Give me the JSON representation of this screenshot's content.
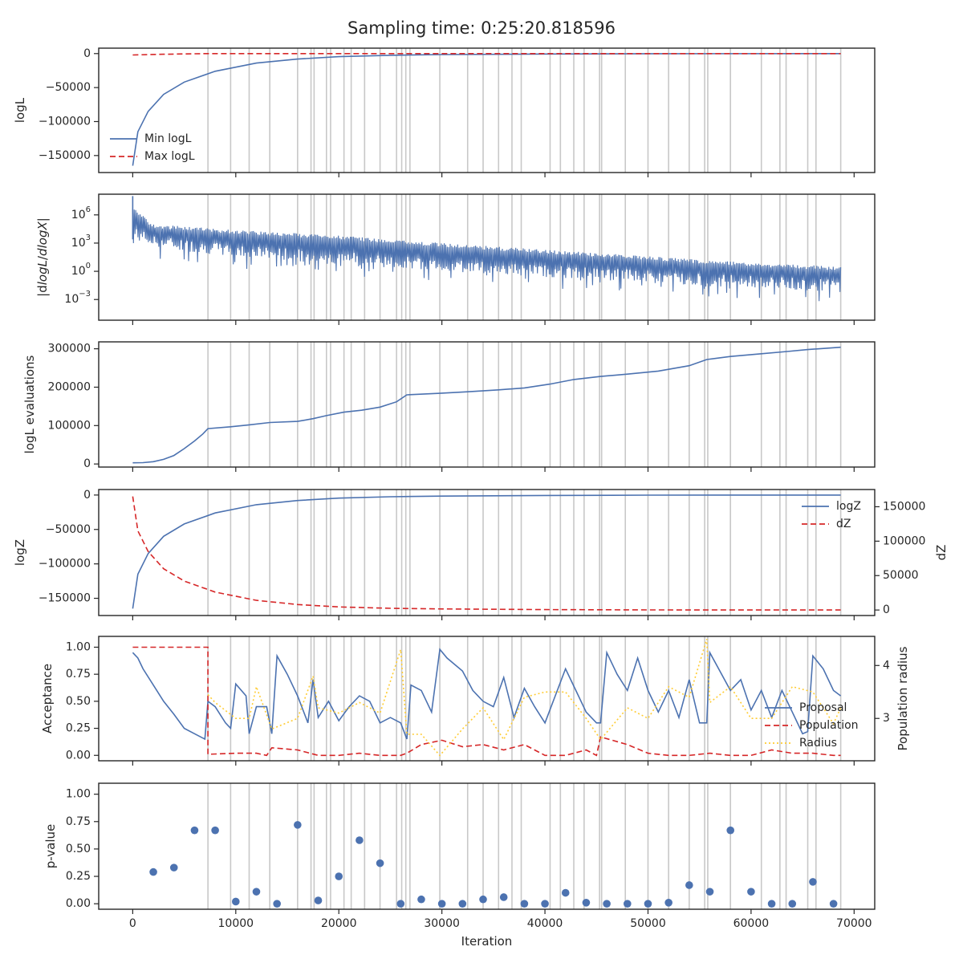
{
  "title": "Sampling time: 0:25:20.818596",
  "colors": {
    "blue": "#4c72b0",
    "red": "#d62728",
    "yellow": "#ffcc33",
    "grid": "#c8c8c8",
    "axis": "#262626"
  },
  "chart_data": [
    {
      "type": "line",
      "ylabel": "logL",
      "ylim": [
        -175000,
        8000
      ],
      "yticks": [
        0,
        -50000,
        -100000,
        -150000
      ],
      "ytick_labels": [
        "0",
        "−50000",
        "−100000",
        "−150000"
      ],
      "legend": [
        "Min logL",
        "Max logL"
      ],
      "legend_loc": "lower-left",
      "series": [
        {
          "name": "Min logL",
          "color": "blue",
          "style": "solid",
          "x": [
            0,
            500,
            1500,
            3000,
            5000,
            8000,
            12000,
            16000,
            20000,
            25000,
            30000,
            40000,
            50000,
            68700
          ],
          "y": [
            -165000,
            -115000,
            -85000,
            -60000,
            -42000,
            -26000,
            -14000,
            -8000,
            -4500,
            -2500,
            -1500,
            -600,
            -200,
            0
          ]
        },
        {
          "name": "Max logL",
          "color": "red",
          "style": "dashed",
          "x": [
            0,
            3000,
            7000,
            15000,
            68700
          ],
          "y": [
            -2000,
            -1000,
            0,
            0,
            0
          ]
        }
      ]
    },
    {
      "type": "line",
      "ylabel": "|dlogL/dlogX|",
      "yscale": "log",
      "ylim_log10": [
        -5.2,
        8.2
      ],
      "yticks_log10": [
        6,
        3,
        0,
        -3
      ],
      "ytick_labels": [
        "10^6",
        "10^3",
        "10^0",
        "10^-3"
      ],
      "series": [
        {
          "name": "",
          "color": "blue",
          "style": "noisy-band",
          "x": [
            0,
            2000,
            10000,
            20000,
            30000,
            40000,
            50000,
            60000,
            68700
          ],
          "upper_log10": [
            6.8,
            5.0,
            4.4,
            3.8,
            3.0,
            2.3,
            1.6,
            0.9,
            0.5
          ],
          "lower_log10": [
            3.5,
            2.5,
            1.5,
            0.8,
            0.0,
            -0.6,
            -1.2,
            -1.8,
            -2.2
          ]
        }
      ]
    },
    {
      "type": "line",
      "ylabel": "logL evaluations",
      "ylim": [
        -8000,
        318000
      ],
      "yticks": [
        0,
        100000,
        200000,
        300000
      ],
      "ytick_labels": [
        "0",
        "100000",
        "200000",
        "300000"
      ],
      "series": [
        {
          "name": "",
          "color": "blue",
          "style": "solid",
          "x": [
            0,
            1000,
            2000,
            3000,
            4000,
            5000,
            6000,
            6800,
            7300,
            9500,
            11300,
            13300,
            16000,
            17500,
            18800,
            20500,
            22200,
            24000,
            25600,
            26600,
            29800,
            32500,
            35500,
            38000,
            40500,
            42800,
            45400,
            48000,
            51000,
            54000,
            55700,
            58000,
            61000,
            63500,
            65500,
            68700
          ],
          "y": [
            3000,
            3500,
            6000,
            12000,
            22000,
            40000,
            60000,
            78000,
            92000,
            97000,
            102000,
            108000,
            111000,
            118000,
            126000,
            135000,
            140000,
            148000,
            162000,
            180000,
            184000,
            188000,
            193000,
            198000,
            208000,
            220000,
            228000,
            234000,
            242000,
            256000,
            272000,
            280000,
            287000,
            293000,
            298000,
            304000
          ]
        }
      ]
    },
    {
      "type": "line",
      "ylabel": "logZ",
      "ylabel_right": "dZ",
      "ylim": [
        -175000,
        8000
      ],
      "yticks": [
        0,
        -50000,
        -100000,
        -150000
      ],
      "ytick_labels": [
        "0",
        "−50000",
        "−100000",
        "−150000"
      ],
      "ylim_right": [
        -8000,
        175000
      ],
      "yticks_right": [
        0,
        50000,
        100000,
        150000
      ],
      "ytick_labels_right": [
        "0",
        "50000",
        "100000",
        "150000"
      ],
      "legend": [
        "logZ",
        "dZ"
      ],
      "legend_loc": "upper-right",
      "series": [
        {
          "name": "logZ",
          "color": "blue",
          "style": "solid",
          "axis": "left",
          "x": [
            0,
            500,
            1500,
            3000,
            5000,
            8000,
            12000,
            16000,
            20000,
            25000,
            30000,
            40000,
            50000,
            68700
          ],
          "y": [
            -165000,
            -115000,
            -85000,
            -60000,
            -42000,
            -26000,
            -14000,
            -8000,
            -4500,
            -2500,
            -1500,
            -600,
            -200,
            0
          ]
        },
        {
          "name": "dZ",
          "color": "red",
          "style": "dashed",
          "axis": "right",
          "x": [
            0,
            500,
            1500,
            3000,
            5000,
            8000,
            12000,
            16000,
            20000,
            25000,
            30000,
            40000,
            50000,
            68700
          ],
          "y": [
            165000,
            115000,
            85000,
            60000,
            42000,
            26000,
            14000,
            8000,
            4500,
            2500,
            1500,
            600,
            200,
            0
          ]
        }
      ]
    },
    {
      "type": "line",
      "ylabel": "Acceptance",
      "ylabel_right": "Population radius",
      "ylim": [
        -0.05,
        1.1
      ],
      "yticks": [
        0,
        0.25,
        0.5,
        0.75,
        1.0
      ],
      "ytick_labels": [
        "0.00",
        "0.25",
        "0.50",
        "0.75",
        "1.00"
      ],
      "ylim_right": [
        2.2,
        4.55
      ],
      "yticks_right": [
        3,
        4
      ],
      "ytick_labels_right": [
        "3",
        "4"
      ],
      "legend": [
        "Proposal",
        "Population",
        "Radius"
      ],
      "legend_loc": "right",
      "series": [
        {
          "name": "Proposal",
          "color": "blue",
          "style": "solid",
          "axis": "left",
          "x": [
            0,
            500,
            1000,
            2000,
            3000,
            4000,
            5000,
            6000,
            7000,
            7300,
            8000,
            9000,
            9500,
            10000,
            11000,
            11300,
            12000,
            13000,
            13500,
            14000,
            15000,
            16000,
            17000,
            17500,
            18000,
            19000,
            20000,
            21000,
            22000,
            23000,
            24000,
            25000,
            26000,
            26600,
            27000,
            28000,
            29000,
            29800,
            30500,
            32000,
            33000,
            34000,
            35000,
            36000,
            37000,
            38000,
            39000,
            40000,
            41000,
            42000,
            43000,
            44000,
            45000,
            45400,
            46000,
            47000,
            48000,
            49000,
            50000,
            51000,
            52000,
            53000,
            54000,
            55000,
            55700,
            56000,
            58000,
            59000,
            60000,
            61000,
            62000,
            63000,
            64000,
            65000,
            65500,
            66000,
            67000,
            68000,
            68700
          ],
          "y": [
            0.95,
            0.9,
            0.8,
            0.65,
            0.5,
            0.38,
            0.25,
            0.2,
            0.15,
            0.5,
            0.45,
            0.3,
            0.25,
            0.66,
            0.55,
            0.2,
            0.45,
            0.45,
            0.2,
            0.92,
            0.75,
            0.55,
            0.3,
            0.7,
            0.35,
            0.5,
            0.32,
            0.45,
            0.55,
            0.5,
            0.3,
            0.35,
            0.3,
            0.15,
            0.65,
            0.6,
            0.4,
            0.98,
            0.9,
            0.78,
            0.6,
            0.5,
            0.45,
            0.72,
            0.35,
            0.62,
            0.45,
            0.3,
            0.55,
            0.8,
            0.6,
            0.4,
            0.3,
            0.3,
            0.95,
            0.75,
            0.6,
            0.9,
            0.6,
            0.4,
            0.6,
            0.35,
            0.7,
            0.3,
            0.3,
            0.95,
            0.6,
            0.7,
            0.42,
            0.6,
            0.35,
            0.6,
            0.4,
            0.2,
            0.22,
            0.92,
            0.8,
            0.6,
            0.55
          ]
        },
        {
          "name": "Population",
          "color": "red",
          "style": "dashed",
          "axis": "left",
          "x": [
            0,
            7300,
            7300,
            10000,
            12000,
            13000,
            13500,
            16000,
            18000,
            20000,
            22000,
            24000,
            26000,
            26600,
            28000,
            30000,
            32000,
            34000,
            36000,
            38000,
            40000,
            42000,
            44000,
            45000,
            45400,
            48000,
            50000,
            52000,
            54000,
            56000,
            58000,
            60000,
            62000,
            64000,
            66000,
            68000,
            68700
          ],
          "y": [
            1.0,
            1.0,
            0.01,
            0.02,
            0.02,
            0.0,
            0.07,
            0.05,
            0.0,
            0.0,
            0.02,
            0.0,
            0.0,
            0.02,
            0.1,
            0.14,
            0.08,
            0.1,
            0.05,
            0.1,
            0.0,
            0.0,
            0.05,
            0.0,
            0.17,
            0.1,
            0.02,
            0.0,
            0.0,
            0.02,
            0.0,
            0.0,
            0.05,
            0.02,
            0.02,
            0.0,
            0.0
          ]
        },
        {
          "name": "Radius",
          "color": "yellow",
          "style": "dotted",
          "axis": "right",
          "x": [
            7300,
            8000,
            10000,
            11300,
            12000,
            13500,
            16000,
            17500,
            18000,
            20000,
            22000,
            24000,
            25000,
            26000,
            26600,
            28000,
            29800,
            32000,
            34000,
            36000,
            38000,
            40000,
            42000,
            44000,
            45400,
            48000,
            50000,
            52000,
            54000,
            55700,
            56000,
            58000,
            60000,
            62000,
            64000,
            66000,
            68000,
            68700
          ],
          "y": [
            3.45,
            3.3,
            3.0,
            3.0,
            3.6,
            2.8,
            3.0,
            3.8,
            3.2,
            3.1,
            3.3,
            3.1,
            3.7,
            4.3,
            2.7,
            2.7,
            2.3,
            2.8,
            3.2,
            2.6,
            3.4,
            3.5,
            3.5,
            3.0,
            2.6,
            3.2,
            3.0,
            3.6,
            3.4,
            4.5,
            3.3,
            3.6,
            3.0,
            3.0,
            3.6,
            3.5,
            2.9,
            3.2
          ]
        }
      ]
    },
    {
      "type": "scatter",
      "ylabel": "p-value",
      "xlabel": "Iteration",
      "ylim": [
        -0.05,
        1.1
      ],
      "yticks": [
        0,
        0.25,
        0.5,
        0.75,
        1.0
      ],
      "ytick_labels": [
        "0.00",
        "0.25",
        "0.50",
        "0.75",
        "1.00"
      ],
      "series": [
        {
          "name": "",
          "color": "blue",
          "style": "points",
          "x": [
            2000,
            4000,
            6000,
            8000,
            10000,
            12000,
            14000,
            16000,
            18000,
            20000,
            22000,
            24000,
            26000,
            28000,
            30000,
            32000,
            34000,
            36000,
            38000,
            40000,
            42000,
            44000,
            46000,
            48000,
            50000,
            52000,
            54000,
            56000,
            58000,
            60000,
            62000,
            64000,
            66000,
            68000
          ],
          "y": [
            0.29,
            0.33,
            0.67,
            0.67,
            0.02,
            0.11,
            0.0,
            0.72,
            0.03,
            0.25,
            0.58,
            0.37,
            0.0,
            0.04,
            0.0,
            0.0,
            0.04,
            0.06,
            0.0,
            0.0,
            0.1,
            0.01,
            0.0,
            0.0,
            0.0,
            0.01,
            0.17,
            0.11,
            0.67,
            0.11,
            0.0,
            0.0,
            0.2,
            0.0
          ]
        }
      ]
    }
  ],
  "x_axis": {
    "xlim": [
      -3300,
      72000
    ],
    "xticks": [
      0,
      10000,
      20000,
      30000,
      40000,
      50000,
      60000,
      70000
    ],
    "xtick_labels": [
      "0",
      "10000",
      "20000",
      "30000",
      "40000",
      "50000",
      "60000",
      "70000"
    ],
    "xlabel": "Iteration"
  },
  "vertical_lines_x": [
    7300,
    9500,
    11300,
    13300,
    16000,
    17300,
    17600,
    18800,
    19200,
    20500,
    21200,
    22500,
    24000,
    25600,
    26100,
    26500,
    26900,
    29800,
    32500,
    34000,
    35500,
    36800,
    37700,
    40500,
    41500,
    42800,
    43800,
    45300,
    45500,
    47800,
    50000,
    52000,
    54000,
    55500,
    55800,
    58000,
    61000,
    62800,
    63400,
    65500,
    66300,
    68700
  ]
}
